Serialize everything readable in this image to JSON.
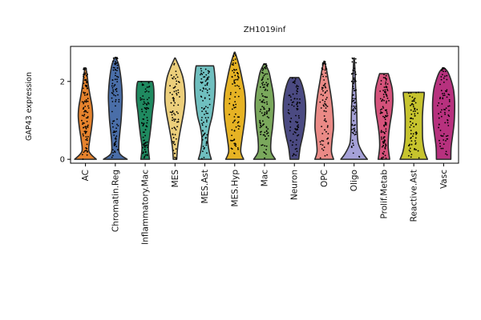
{
  "chart_data": {
    "type": "violin",
    "title": "ZH1019inf",
    "xlabel": "",
    "ylabel": "GAP43 expression",
    "ylim": [
      -0.1,
      2.9
    ],
    "yticks": [
      0,
      2
    ],
    "grid": false,
    "categories": [
      "AC",
      "Chromatin.Reg",
      "Inflammatory.Mac",
      "MES",
      "MES.Ast",
      "MES.Hyp",
      "Mac",
      "Neuron",
      "OPC",
      "Oligo",
      "Prolif.Metab",
      "Reactive.Ast",
      "Vasc"
    ],
    "colors": [
      "#e6832d",
      "#4a6ea8",
      "#1f8a60",
      "#eccf7b",
      "#6fbfbf",
      "#e6b324",
      "#7aa85c",
      "#4b4a82",
      "#ea8a86",
      "#a5a1d8",
      "#d5527b",
      "#c7c42e",
      "#b7317e"
    ],
    "violins": [
      {
        "category": "AC",
        "max": 2.35,
        "profile": [
          [
            0,
            0.75
          ],
          [
            0.2,
            0.25
          ],
          [
            0.5,
            0.3
          ],
          [
            0.8,
            0.42
          ],
          [
            1.1,
            0.5
          ],
          [
            1.35,
            0.46
          ],
          [
            1.6,
            0.34
          ],
          [
            1.9,
            0.2
          ],
          [
            2.2,
            0.1
          ],
          [
            2.35,
            0.02
          ]
        ]
      },
      {
        "category": "Chromatin.Reg",
        "max": 2.62,
        "profile": [
          [
            0,
            0.82
          ],
          [
            0.15,
            0.3
          ],
          [
            0.4,
            0.25
          ],
          [
            0.7,
            0.32
          ],
          [
            1.0,
            0.4
          ],
          [
            1.3,
            0.45
          ],
          [
            1.6,
            0.48
          ],
          [
            1.9,
            0.44
          ],
          [
            2.2,
            0.35
          ],
          [
            2.45,
            0.22
          ],
          [
            2.62,
            0.02
          ]
        ]
      },
      {
        "category": "Inflammatory.Mac",
        "max": 2.0,
        "profile": [
          [
            0,
            0.3
          ],
          [
            0.3,
            0.22
          ],
          [
            0.6,
            0.32
          ],
          [
            0.9,
            0.42
          ],
          [
            1.2,
            0.5
          ],
          [
            1.5,
            0.6
          ],
          [
            1.8,
            0.6
          ],
          [
            1.95,
            0.55
          ],
          [
            2.0,
            0.5
          ]
        ]
      },
      {
        "category": "MES",
        "max": 2.6,
        "profile": [
          [
            0,
            0.12
          ],
          [
            0.3,
            0.18
          ],
          [
            0.6,
            0.3
          ],
          [
            0.9,
            0.45
          ],
          [
            1.2,
            0.6
          ],
          [
            1.5,
            0.7
          ],
          [
            1.8,
            0.68
          ],
          [
            2.1,
            0.55
          ],
          [
            2.35,
            0.32
          ],
          [
            2.6,
            0.02
          ]
        ]
      },
      {
        "category": "MES.Ast",
        "max": 2.4,
        "profile": [
          [
            0,
            0.45
          ],
          [
            0.2,
            0.3
          ],
          [
            0.5,
            0.2
          ],
          [
            0.8,
            0.3
          ],
          [
            1.1,
            0.5
          ],
          [
            1.4,
            0.62
          ],
          [
            1.7,
            0.7
          ],
          [
            2.0,
            0.72
          ],
          [
            2.3,
            0.65
          ],
          [
            2.4,
            0.6
          ]
        ]
      },
      {
        "category": "MES.Hyp",
        "max": 2.75,
        "profile": [
          [
            0,
            0.62
          ],
          [
            0.2,
            0.42
          ],
          [
            0.5,
            0.5
          ],
          [
            0.8,
            0.62
          ],
          [
            1.1,
            0.72
          ],
          [
            1.4,
            0.75
          ],
          [
            1.7,
            0.7
          ],
          [
            2.0,
            0.55
          ],
          [
            2.3,
            0.38
          ],
          [
            2.55,
            0.2
          ],
          [
            2.75,
            0.02
          ]
        ]
      },
      {
        "category": "Mac",
        "max": 2.45,
        "profile": [
          [
            0,
            0.75
          ],
          [
            0.2,
            0.45
          ],
          [
            0.5,
            0.45
          ],
          [
            0.8,
            0.55
          ],
          [
            1.1,
            0.62
          ],
          [
            1.4,
            0.66
          ],
          [
            1.7,
            0.6
          ],
          [
            2.0,
            0.45
          ],
          [
            2.25,
            0.3
          ],
          [
            2.45,
            0.05
          ]
        ]
      },
      {
        "category": "Neuron",
        "max": 2.1,
        "profile": [
          [
            0,
            0.3
          ],
          [
            0.3,
            0.4
          ],
          [
            0.6,
            0.58
          ],
          [
            0.9,
            0.72
          ],
          [
            1.2,
            0.78
          ],
          [
            1.5,
            0.76
          ],
          [
            1.8,
            0.62
          ],
          [
            2.0,
            0.45
          ],
          [
            2.1,
            0.3
          ]
        ]
      },
      {
        "category": "OPC",
        "max": 2.52,
        "profile": [
          [
            0,
            0.65
          ],
          [
            0.2,
            0.5
          ],
          [
            0.5,
            0.55
          ],
          [
            0.8,
            0.64
          ],
          [
            1.1,
            0.62
          ],
          [
            1.4,
            0.55
          ],
          [
            1.7,
            0.44
          ],
          [
            2.0,
            0.3
          ],
          [
            2.3,
            0.16
          ],
          [
            2.52,
            0.02
          ]
        ]
      },
      {
        "category": "Oligo",
        "max": 2.6,
        "profile": [
          [
            0,
            0.92
          ],
          [
            0.15,
            0.62
          ],
          [
            0.4,
            0.3
          ],
          [
            0.7,
            0.22
          ],
          [
            1.0,
            0.2
          ],
          [
            1.3,
            0.18
          ],
          [
            1.6,
            0.14
          ],
          [
            1.9,
            0.1
          ],
          [
            2.2,
            0.07
          ],
          [
            2.6,
            0.02
          ]
        ]
      },
      {
        "category": "Prolif.Metab",
        "max": 2.2,
        "profile": [
          [
            0,
            0.4
          ],
          [
            0.3,
            0.3
          ],
          [
            0.6,
            0.32
          ],
          [
            0.9,
            0.42
          ],
          [
            1.2,
            0.55
          ],
          [
            1.5,
            0.62
          ],
          [
            1.8,
            0.58
          ],
          [
            2.05,
            0.42
          ],
          [
            2.2,
            0.3
          ]
        ]
      },
      {
        "category": "Reactive.Ast",
        "max": 1.72,
        "profile": [
          [
            0,
            0.95
          ],
          [
            0.2,
            0.75
          ],
          [
            0.5,
            0.62
          ],
          [
            0.8,
            0.6
          ],
          [
            1.1,
            0.6
          ],
          [
            1.4,
            0.65
          ],
          [
            1.65,
            0.72
          ],
          [
            1.72,
            0.72
          ]
        ]
      },
      {
        "category": "Vasc",
        "max": 2.35,
        "profile": [
          [
            0,
            0.5
          ],
          [
            0.3,
            0.52
          ],
          [
            0.6,
            0.62
          ],
          [
            0.9,
            0.72
          ],
          [
            1.2,
            0.76
          ],
          [
            1.5,
            0.76
          ],
          [
            1.8,
            0.68
          ],
          [
            2.05,
            0.5
          ],
          [
            2.25,
            0.28
          ],
          [
            2.35,
            0.04
          ]
        ]
      }
    ]
  }
}
